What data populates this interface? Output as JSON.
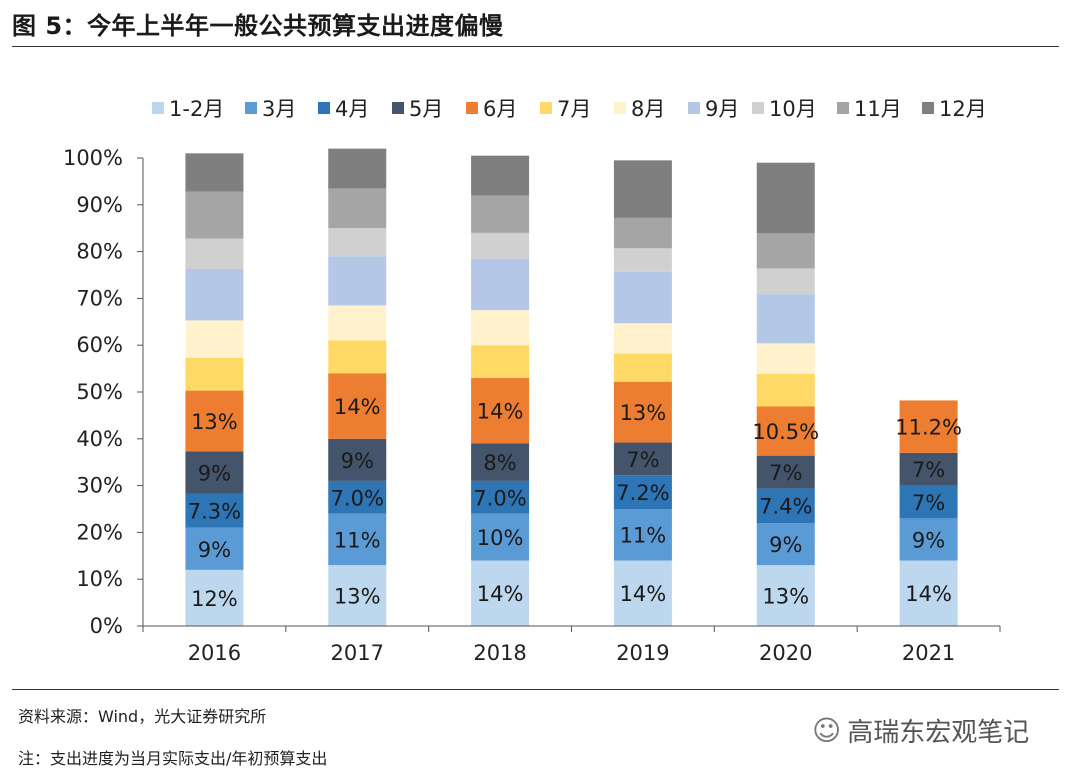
{
  "title": "图 5：今年上半年一般公共预算支出进度偏慢",
  "source": "资料来源：Wind，光大证券研究所",
  "note": "注：支出进度为当月实际支出/年初预算支出",
  "watermark": "高瑞东宏观笔记",
  "watermark_icon": "wechat-icon",
  "chart_data": {
    "type": "bar",
    "stacked": true,
    "title": "今年上半年一般公共预算支出进度偏慢",
    "xlabel": "",
    "ylabel": "",
    "ylim": [
      0,
      100
    ],
    "y_tick_labels": [
      "0%",
      "10%",
      "20%",
      "30%",
      "40%",
      "50%",
      "60%",
      "70%",
      "80%",
      "90%",
      "100%"
    ],
    "legend_position": "top",
    "categories": [
      "2016",
      "2017",
      "2018",
      "2019",
      "2020",
      "2021"
    ],
    "series": [
      {
        "name": "1-2月",
        "color": "#bdd7ee",
        "values": [
          12,
          13,
          14,
          14,
          13,
          14
        ],
        "labels": [
          "12%",
          "13%",
          "14%",
          "14%",
          "13%",
          "14%"
        ]
      },
      {
        "name": "3月",
        "color": "#5b9bd5",
        "values": [
          9,
          11,
          10,
          11,
          9,
          9
        ],
        "labels": [
          "9%",
          "11%",
          "10%",
          "11%",
          "9%",
          "9%"
        ]
      },
      {
        "name": "4月",
        "color": "#2e75b6",
        "values": [
          7.3,
          7.0,
          7.0,
          7.2,
          7.4,
          7
        ],
        "labels": [
          "7.3%",
          "7.0%",
          "7.0%",
          "7.2%",
          "7.4%",
          "7%"
        ]
      },
      {
        "name": "5月",
        "color": "#44546a",
        "values": [
          9,
          9,
          8,
          7,
          7,
          7
        ],
        "labels": [
          "9%",
          "9%",
          "8%",
          "7%",
          "7%",
          "7%"
        ]
      },
      {
        "name": "6月",
        "color": "#ed7d31",
        "values": [
          13,
          14,
          14,
          13,
          10.5,
          11.2
        ],
        "labels": [
          "13%",
          "14%",
          "14%",
          "13%",
          "10.5%",
          "11.2%"
        ]
      },
      {
        "name": "7月",
        "color": "#ffd966",
        "values": [
          7,
          7,
          7,
          6,
          7,
          null
        ],
        "labels": [
          "",
          "",
          "",
          "",
          "",
          ""
        ]
      },
      {
        "name": "8月",
        "color": "#fff2cc",
        "values": [
          8,
          7.5,
          7.5,
          6.5,
          6.5,
          null
        ],
        "labels": [
          "",
          "",
          "",
          "",
          "",
          ""
        ]
      },
      {
        "name": "9月",
        "color": "#b4c7e7",
        "values": [
          11,
          10.5,
          11,
          11,
          10.5,
          null
        ],
        "labels": [
          "",
          "",
          "",
          "",
          "",
          ""
        ]
      },
      {
        "name": "10月",
        "color": "#d0d0d0",
        "values": [
          6.5,
          6,
          5.5,
          5,
          5.5,
          null
        ],
        "labels": [
          "",
          "",
          "",
          "",
          "",
          ""
        ]
      },
      {
        "name": "11月",
        "color": "#a5a5a5",
        "values": [
          10,
          8.5,
          8,
          6.5,
          7.5,
          null
        ],
        "labels": [
          "",
          "",
          "",
          "",
          "",
          ""
        ]
      },
      {
        "name": "12月",
        "color": "#7f7f7f",
        "values": [
          8.2,
          8.5,
          8.5,
          12.3,
          15.1,
          null
        ],
        "labels": [
          "",
          "",
          "",
          "",
          "",
          ""
        ]
      }
    ]
  }
}
